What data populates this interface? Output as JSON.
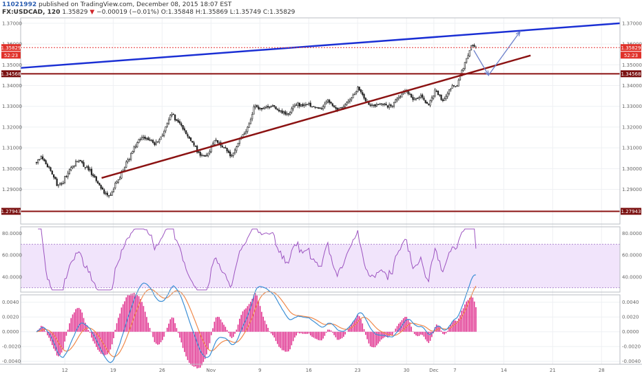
{
  "header": {
    "user": "11021992",
    "published": "published on TradingView.com, December 08, 2015 18:07 EST",
    "symbol": "FX:USDCAD, 120",
    "last": "1.35829",
    "change_arrow": "▼",
    "change": "−0.00019 (−0.01%)",
    "ohlc": [
      "O:1.35848",
      "H:1.35869",
      "L:1.35749",
      "C:1.35829"
    ]
  },
  "price_axis": {
    "ticks": [
      "1.37000",
      "1.36000",
      "1.35000",
      "1.34000",
      "1.33000",
      "1.32000",
      "1.31000",
      "1.30000",
      "1.29000"
    ],
    "tick_values": [
      1.37,
      1.36,
      1.35,
      1.34,
      1.33,
      1.32,
      1.31,
      1.3,
      1.29
    ],
    "range": [
      1.2733,
      1.3726
    ],
    "badges": {
      "last_price": "1.35829",
      "countdown": "52:23",
      "resistance": "1.34568",
      "support": "1.27943"
    },
    "levels": {
      "last": 1.35829,
      "resistance": 1.34568,
      "support": 1.27943
    }
  },
  "rsi_axis": {
    "ticks": [
      "80.0000",
      "60.0000",
      "40.0000"
    ],
    "tick_values": [
      80,
      60,
      40
    ],
    "range": [
      26,
      86
    ],
    "band": [
      30,
      70
    ]
  },
  "macd_axis": {
    "ticks": [
      "0.0040",
      "0.0020",
      "0.0000",
      "-0.0020",
      "-0.0040"
    ],
    "tick_values": [
      0.004,
      0.002,
      0,
      -0.002,
      -0.004
    ],
    "range": [
      -0.0044,
      0.005
    ]
  },
  "time_axis": {
    "labels": [
      "12",
      "19",
      "26",
      "Nov",
      "9",
      "16",
      "23",
      "30",
      "Dec",
      "7",
      "14",
      "21",
      "28"
    ],
    "label_positions": [
      2.7,
      7.3,
      11.95,
      16.6,
      21.25,
      25.9,
      30.55,
      35.2,
      37.8,
      39.8,
      44.45,
      49.1,
      53.75
    ]
  },
  "colors": {
    "up": "#27272a",
    "down": "#222222",
    "candle_up_fill": "#ffffff",
    "blue_line": "#1a2fd4",
    "maroon_line": "#8b1212",
    "dotted_red": "#e53030",
    "arrow": "#6f83cc",
    "rsi": "#9c53c0",
    "rsi_band": "#f1e4fb",
    "macd_line": "#3b8fd6",
    "signal_line": "#f0894b",
    "hist": "#e0318f"
  },
  "chart_data": {
    "type": "candlestick",
    "symbol": "FX:USDCAD",
    "interval": "120",
    "x_unit": "trading-day index (0 = Oct 9, 2015)",
    "price_anchors": [
      [
        0,
        1.303
      ],
      [
        0.5,
        1.3055
      ],
      [
        1.2,
        1.3
      ],
      [
        2.0,
        1.292
      ],
      [
        2.5,
        1.2935
      ],
      [
        3.3,
        1.3
      ],
      [
        4.0,
        1.304
      ],
      [
        4.8,
        1.3005
      ],
      [
        5.5,
        1.296
      ],
      [
        6.2,
        1.29
      ],
      [
        6.9,
        1.286
      ],
      [
        7.4,
        1.292
      ],
      [
        8.2,
        1.299
      ],
      [
        9.0,
        1.307
      ],
      [
        9.8,
        1.315
      ],
      [
        10.6,
        1.314
      ],
      [
        11.3,
        1.312
      ],
      [
        12.0,
        1.316
      ],
      [
        12.8,
        1.327
      ],
      [
        13.4,
        1.323
      ],
      [
        14.1,
        1.318
      ],
      [
        14.8,
        1.313
      ],
      [
        15.5,
        1.307
      ],
      [
        16.2,
        1.306
      ],
      [
        17.0,
        1.314
      ],
      [
        17.8,
        1.31
      ],
      [
        18.6,
        1.306
      ],
      [
        19.4,
        1.315
      ],
      [
        20.0,
        1.318
      ],
      [
        20.7,
        1.33
      ],
      [
        21.5,
        1.329
      ],
      [
        22.3,
        1.33
      ],
      [
        23.0,
        1.328
      ],
      [
        23.8,
        1.326
      ],
      [
        24.6,
        1.331
      ],
      [
        25.4,
        1.331
      ],
      [
        26.2,
        1.33
      ],
      [
        27.0,
        1.329
      ],
      [
        27.8,
        1.333
      ],
      [
        28.6,
        1.328
      ],
      [
        29.2,
        1.33
      ],
      [
        30.0,
        1.334
      ],
      [
        30.6,
        1.339
      ],
      [
        31.3,
        1.332
      ],
      [
        32.0,
        1.33
      ],
      [
        32.8,
        1.331
      ],
      [
        33.6,
        1.33
      ],
      [
        34.4,
        1.334
      ],
      [
        35.2,
        1.338
      ],
      [
        35.9,
        1.333
      ],
      [
        36.6,
        1.335
      ],
      [
        37.3,
        1.331
      ],
      [
        38.0,
        1.338
      ],
      [
        38.7,
        1.332
      ],
      [
        39.4,
        1.339
      ],
      [
        40.0,
        1.34
      ],
      [
        40.5,
        1.348
      ],
      [
        41.0,
        1.354
      ],
      [
        41.4,
        1.36
      ],
      [
        41.8,
        1.3583
      ]
    ],
    "annotations": [
      {
        "name": "blue resistance trendline",
        "points": [
          [
            -1.5,
            1.3485
          ],
          [
            55.5,
            1.37
          ]
        ]
      },
      {
        "name": "maroon support trendline",
        "points": [
          [
            6.2,
            1.2955
          ],
          [
            47.0,
            1.3545
          ]
        ]
      },
      {
        "name": "horizontal level",
        "value": 1.34568
      },
      {
        "name": "horizontal level",
        "value": 1.27943
      },
      {
        "name": "projection arrow",
        "points": [
          [
            41.6,
            1.357
          ],
          [
            43.0,
            1.345
          ],
          [
            46.0,
            1.366
          ]
        ]
      }
    ],
    "rsi": {
      "band": [
        30,
        70
      ],
      "last": 66
    },
    "macd": {
      "last_macd": 0.0049,
      "last_signal": 0.0047
    },
    "xlim": [
      -1.5,
      55.5
    ],
    "ylim": [
      1.2733,
      1.3726
    ]
  }
}
